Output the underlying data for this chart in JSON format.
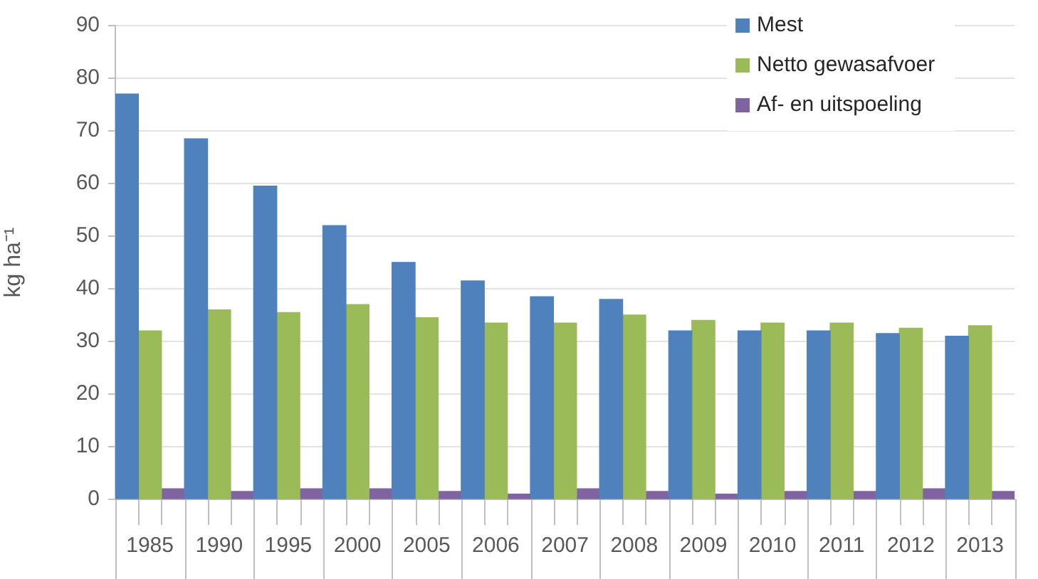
{
  "chart_data": {
    "type": "bar",
    "ylabel": "kg ha⁻¹",
    "categories": [
      "1985",
      "1990",
      "1995",
      "2000",
      "2005",
      "2006",
      "2007",
      "2008",
      "2009",
      "2010",
      "2011",
      "2012",
      "2013"
    ],
    "series": [
      {
        "name": "Mest",
        "color": "#4f81bd",
        "values": [
          77,
          68.5,
          59.5,
          52,
          45,
          41.5,
          38.5,
          38,
          32,
          32,
          32,
          31.5,
          31
        ]
      },
      {
        "name": "Netto gewasafvoer",
        "color": "#9bbb59",
        "values": [
          32,
          36,
          35.5,
          37,
          34.5,
          33.5,
          33.5,
          35,
          34,
          33.5,
          33.5,
          32.5,
          33
        ]
      },
      {
        "name": "Af- en uitspoeling",
        "color": "#8064a2",
        "values": [
          2,
          1.5,
          2,
          2,
          1.5,
          1,
          2,
          1.5,
          1,
          1.5,
          1.5,
          2,
          1.5
        ]
      }
    ],
    "ylim": [
      0,
      90
    ],
    "yticks": [
      0,
      10,
      20,
      30,
      40,
      50,
      60,
      70,
      80,
      90
    ],
    "grid": "y",
    "legend": "top right"
  }
}
